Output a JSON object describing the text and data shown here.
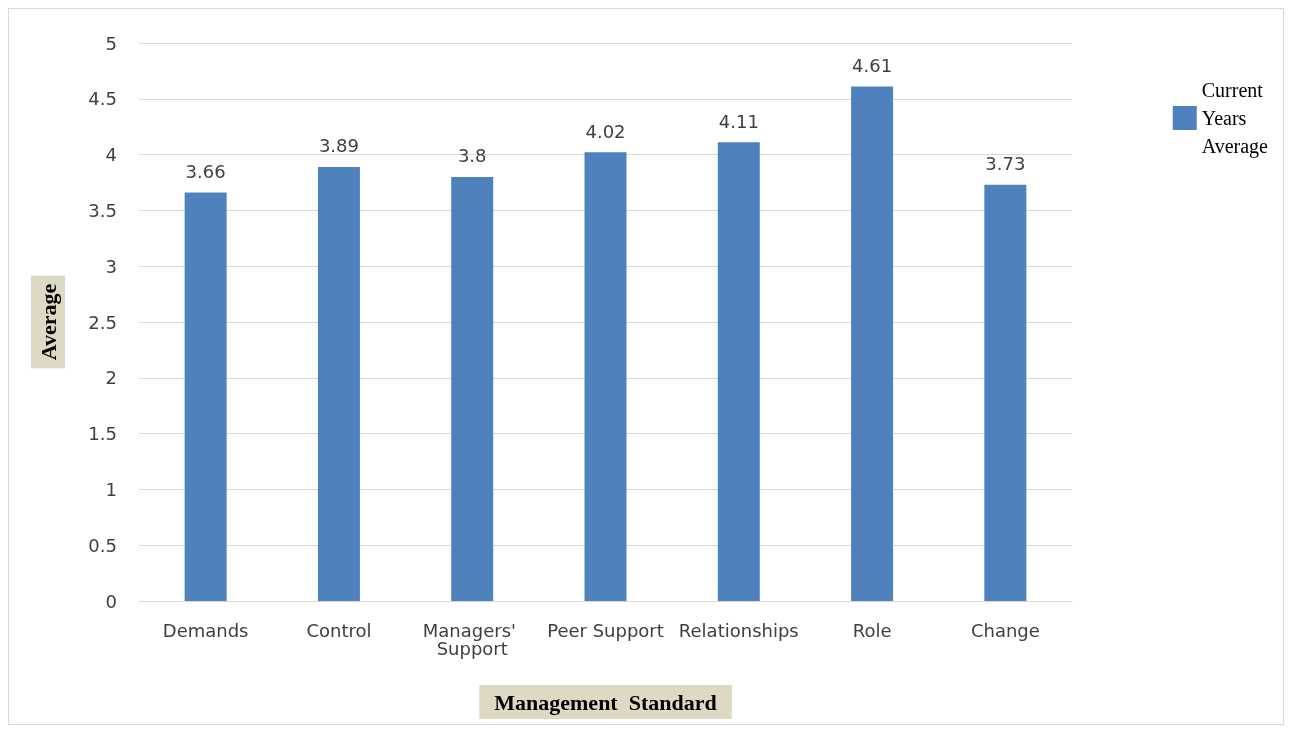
{
  "chart_data": {
    "type": "bar",
    "xlabel": "Management  Standard",
    "ylabel": "Average",
    "categories": [
      "Demands",
      "Control",
      "Managers' Support",
      "Peer Support",
      "Relationships",
      "Role",
      "Change"
    ],
    "series": [
      {
        "name": "Current Years Average",
        "color": "#4f81bd",
        "values": [
          3.66,
          3.89,
          3.8,
          4.02,
          4.11,
          4.61,
          3.73
        ]
      }
    ],
    "ylim": [
      0,
      5
    ],
    "yticks": [
      0,
      0.5,
      1,
      1.5,
      2,
      2.5,
      3,
      3.5,
      4,
      4.5,
      5
    ],
    "grid": "y",
    "legend": "top right",
    "data_labels": true
  }
}
